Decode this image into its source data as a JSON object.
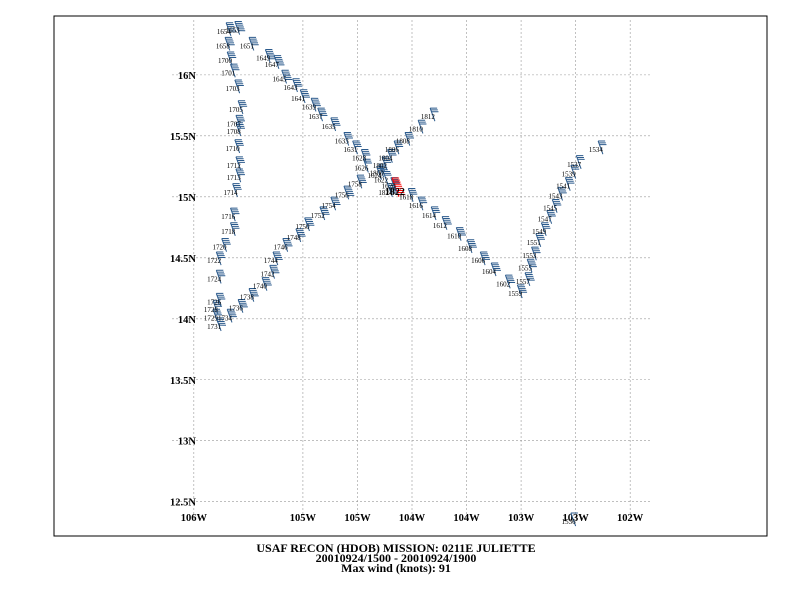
{
  "caption": {
    "line1": "USAF RECON (HDOB) MISSION:  0211E   JULIETTE",
    "line2": "20010924/1500 - 20010924/1900",
    "line3": "Max wind (knots):   91"
  },
  "chart_data": {
    "type": "scatter",
    "xlabels": [
      "106W",
      "105W",
      "105W",
      "104W",
      "104W",
      "103W",
      "103W",
      "102W"
    ],
    "xlabel_lons": [
      -106,
      -105,
      -104.5,
      -104,
      -103.5,
      -103,
      -102.5,
      -102
    ],
    "ylabels": [
      "16N",
      "15.5N",
      "15N",
      "14.5N",
      "14N",
      "13.5N",
      "13N",
      "12.5N"
    ],
    "ylabel_lats": [
      16,
      15.5,
      15,
      14.5,
      14,
      13.5,
      13,
      12.5
    ],
    "xlim": [
      -106.2,
      -101.8
    ],
    "ylim": [
      12.35,
      16.45
    ],
    "grid": true,
    "colors": {
      "barb": "#2b5a8c",
      "max_barb": "#ff0000",
      "grid": "#999999"
    },
    "max_time": "1822",
    "observations": [
      {
        "time": "1534",
        "lon": -102.25,
        "lat": 15.35,
        "wind": 25
      },
      {
        "time": "1536",
        "lon": -102.5,
        "lat": 12.3,
        "wind": 10
      },
      {
        "time": "1537",
        "lon": -102.45,
        "lat": 15.23,
        "wind": 30
      },
      {
        "time": "1539",
        "lon": -102.5,
        "lat": 15.15,
        "wind": 30
      },
      {
        "time": "1541",
        "lon": -102.55,
        "lat": 15.05,
        "wind": 35
      },
      {
        "time": "1543",
        "lon": -102.62,
        "lat": 14.97,
        "wind": 35
      },
      {
        "time": "1545",
        "lon": -102.67,
        "lat": 14.87,
        "wind": 35
      },
      {
        "time": "1547",
        "lon": -102.72,
        "lat": 14.78,
        "wind": 40
      },
      {
        "time": "1549",
        "lon": -102.77,
        "lat": 14.68,
        "wind": 40
      },
      {
        "time": "1551",
        "lon": -102.82,
        "lat": 14.59,
        "wind": 40
      },
      {
        "time": "1553",
        "lon": -102.86,
        "lat": 14.48,
        "wind": 40
      },
      {
        "time": "1555",
        "lon": -102.9,
        "lat": 14.38,
        "wind": 45
      },
      {
        "time": "1557",
        "lon": -102.92,
        "lat": 14.27,
        "wind": 45
      },
      {
        "time": "1559",
        "lon": -102.99,
        "lat": 14.17,
        "wind": 45
      },
      {
        "time": "1602",
        "lon": -103.1,
        "lat": 14.25,
        "wind": 45
      },
      {
        "time": "1604",
        "lon": -103.23,
        "lat": 14.35,
        "wind": 45
      },
      {
        "time": "1606",
        "lon": -103.33,
        "lat": 14.44,
        "wind": 45
      },
      {
        "time": "1608",
        "lon": -103.45,
        "lat": 14.54,
        "wind": 45
      },
      {
        "time": "1610",
        "lon": -103.55,
        "lat": 14.64,
        "wind": 45
      },
      {
        "time": "1612",
        "lon": -103.68,
        "lat": 14.73,
        "wind": 45
      },
      {
        "time": "1614",
        "lon": -103.78,
        "lat": 14.81,
        "wind": 40
      },
      {
        "time": "1616",
        "lon": -103.9,
        "lat": 14.89,
        "wind": 40
      },
      {
        "time": "1618",
        "lon": -103.99,
        "lat": 14.96,
        "wind": 35
      },
      {
        "time": "1620",
        "lon": -104.15,
        "lat": 15.05,
        "wind": 35
      },
      {
        "time": "1622",
        "lon": -104.22,
        "lat": 15.1,
        "wind": 30
      },
      {
        "time": "1624",
        "lon": -104.28,
        "lat": 15.14,
        "wind": 25
      },
      {
        "time": "1626",
        "lon": -104.4,
        "lat": 15.2,
        "wind": 30
      },
      {
        "time": "1628",
        "lon": -104.42,
        "lat": 15.28,
        "wind": 35
      },
      {
        "time": "1631",
        "lon": -104.5,
        "lat": 15.35,
        "wind": 35
      },
      {
        "time": "1633",
        "lon": -104.58,
        "lat": 15.42,
        "wind": 40
      },
      {
        "time": "1635",
        "lon": -104.7,
        "lat": 15.54,
        "wind": 45
      },
      {
        "time": "1637",
        "lon": -104.82,
        "lat": 15.62,
        "wind": 50
      },
      {
        "time": "1639",
        "lon": -104.88,
        "lat": 15.7,
        "wind": 50
      },
      {
        "time": "1641",
        "lon": -104.98,
        "lat": 15.77,
        "wind": 50
      },
      {
        "time": "1643",
        "lon": -105.05,
        "lat": 15.86,
        "wind": 50
      },
      {
        "time": "1645",
        "lon": -105.15,
        "lat": 15.93,
        "wind": 55
      },
      {
        "time": "1647",
        "lon": -105.22,
        "lat": 16.05,
        "wind": 55
      },
      {
        "time": "1649",
        "lon": -105.3,
        "lat": 16.1,
        "wind": 55
      },
      {
        "time": "1651",
        "lon": -105.45,
        "lat": 16.2,
        "wind": 50
      },
      {
        "time": "1653",
        "lon": -105.58,
        "lat": 16.33,
        "wind": 55
      },
      {
        "time": "1654",
        "lon": -105.66,
        "lat": 16.32,
        "wind": 55
      },
      {
        "time": "1658",
        "lon": -105.67,
        "lat": 16.2,
        "wind": 45
      },
      {
        "time": "1700",
        "lon": -105.65,
        "lat": 16.08,
        "wind": 40
      },
      {
        "time": "1701",
        "lon": -105.62,
        "lat": 15.98,
        "wind": 40
      },
      {
        "time": "1703",
        "lon": -105.58,
        "lat": 15.85,
        "wind": 40
      },
      {
        "time": "1705",
        "lon": -105.55,
        "lat": 15.68,
        "wind": 40
      },
      {
        "time": "1707",
        "lon": -105.57,
        "lat": 15.56,
        "wind": 40
      },
      {
        "time": "1708",
        "lon": -105.57,
        "lat": 15.5,
        "wind": 40
      },
      {
        "time": "1710",
        "lon": -105.58,
        "lat": 15.36,
        "wind": 40
      },
      {
        "time": "1712",
        "lon": -105.57,
        "lat": 15.22,
        "wind": 35
      },
      {
        "time": "1713",
        "lon": -105.57,
        "lat": 15.12,
        "wind": 35
      },
      {
        "time": "1714",
        "lon": -105.6,
        "lat": 15.0,
        "wind": 35
      },
      {
        "time": "1716",
        "lon": -105.62,
        "lat": 14.8,
        "wind": 35
      },
      {
        "time": "1718",
        "lon": -105.62,
        "lat": 14.68,
        "wind": 35
      },
      {
        "time": "1720",
        "lon": -105.7,
        "lat": 14.55,
        "wind": 35
      },
      {
        "time": "1722",
        "lon": -105.75,
        "lat": 14.44,
        "wind": 35
      },
      {
        "time": "1724",
        "lon": -105.75,
        "lat": 14.29,
        "wind": 35
      },
      {
        "time": "1726",
        "lon": -105.75,
        "lat": 14.1,
        "wind": 40
      },
      {
        "time": "1728",
        "lon": -105.78,
        "lat": 14.04,
        "wind": 40
      },
      {
        "time": "1729",
        "lon": -105.78,
        "lat": 13.97,
        "wind": 40
      },
      {
        "time": "1731",
        "lon": -105.75,
        "lat": 13.9,
        "wind": 45
      },
      {
        "time": "1734",
        "lon": -105.65,
        "lat": 13.97,
        "wind": 45
      },
      {
        "time": "1736",
        "lon": -105.55,
        "lat": 14.05,
        "wind": 45
      },
      {
        "time": "1738",
        "lon": -105.45,
        "lat": 14.14,
        "wind": 45
      },
      {
        "time": "1740",
        "lon": -105.33,
        "lat": 14.23,
        "wind": 45
      },
      {
        "time": "1742",
        "lon": -105.26,
        "lat": 14.33,
        "wind": 45
      },
      {
        "time": "1744",
        "lon": -105.23,
        "lat": 14.44,
        "wind": 45
      },
      {
        "time": "1746",
        "lon": -105.14,
        "lat": 14.55,
        "wind": 45
      },
      {
        "time": "1748",
        "lon": -105.02,
        "lat": 14.63,
        "wind": 50
      },
      {
        "time": "1750",
        "lon": -104.94,
        "lat": 14.72,
        "wind": 50
      },
      {
        "time": "1752",
        "lon": -104.8,
        "lat": 14.81,
        "wind": 50
      },
      {
        "time": "1754",
        "lon": -104.7,
        "lat": 14.89,
        "wind": 50
      },
      {
        "time": "1756",
        "lon": -104.58,
        "lat": 14.98,
        "wind": 55
      },
      {
        "time": "1758",
        "lon": -104.46,
        "lat": 15.07,
        "wind": 45
      },
      {
        "time": "1800",
        "lon": -104.26,
        "lat": 15.16,
        "wind": 45
      },
      {
        "time": "1802",
        "lon": -104.23,
        "lat": 15.22,
        "wind": 40
      },
      {
        "time": "1804",
        "lon": -104.18,
        "lat": 15.28,
        "wind": 40
      },
      {
        "time": "1806",
        "lon": -104.12,
        "lat": 15.35,
        "wind": 40
      },
      {
        "time": "1808",
        "lon": -104.02,
        "lat": 15.42,
        "wind": 40
      },
      {
        "time": "1810",
        "lon": -103.9,
        "lat": 15.52,
        "wind": 30
      },
      {
        "time": "1812",
        "lon": -103.79,
        "lat": 15.62,
        "wind": 25
      },
      {
        "time": "1822",
        "lon": -104.12,
        "lat": 15.0,
        "wind": 91
      },
      {
        "time": "1824",
        "lon": -104.18,
        "lat": 15.0,
        "wind": 60
      }
    ]
  }
}
